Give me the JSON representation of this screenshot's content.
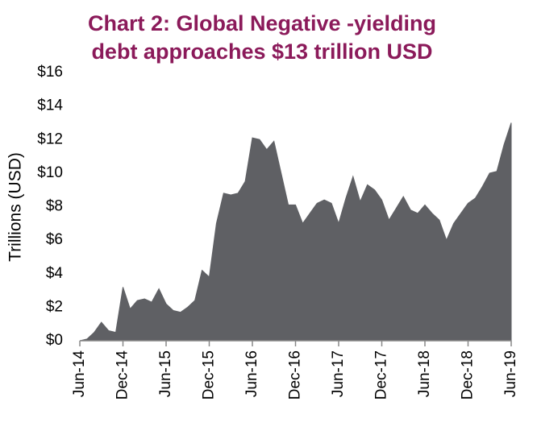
{
  "chart_data": {
    "type": "area",
    "title": [
      "Chart 2: Global Negative -yielding",
      "debt approaches $13 trillion USD"
    ],
    "y_label": "Trillions (USD)",
    "color": "#5f6064",
    "categories": [
      "Jun-14",
      null,
      null,
      null,
      null,
      null,
      "Dec-14",
      null,
      null,
      null,
      null,
      null,
      "Jun-15",
      null,
      null,
      null,
      null,
      null,
      "Dec-15",
      null,
      null,
      null,
      null,
      null,
      "Jun-16",
      null,
      null,
      null,
      null,
      null,
      "Dec-16",
      null,
      null,
      null,
      null,
      null,
      "Jun-17",
      null,
      null,
      null,
      null,
      null,
      "Dec-17",
      null,
      null,
      null,
      null,
      null,
      "Jun-18",
      null,
      null,
      null,
      null,
      null,
      "Dec-18",
      null,
      null,
      null,
      null,
      null,
      "Jun-19"
    ],
    "values": [
      0,
      0.1,
      0.5,
      1.1,
      0.6,
      0.5,
      3.2,
      1.9,
      2.4,
      2.5,
      2.3,
      3.1,
      2.2,
      1.8,
      1.7,
      2.0,
      2.4,
      4.2,
      3.8,
      7.0,
      8.8,
      8.7,
      8.8,
      9.5,
      12.1,
      12.0,
      11.4,
      11.9,
      10.0,
      8.1,
      8.1,
      7.0,
      7.6,
      8.2,
      8.4,
      8.2,
      7.0,
      8.5,
      9.8,
      8.3,
      9.3,
      9.0,
      8.4,
      7.2,
      7.9,
      8.6,
      7.8,
      7.6,
      8.1,
      7.6,
      7.2,
      6.0,
      7.0,
      7.6,
      8.2,
      8.5,
      9.2,
      10.0,
      10.1,
      11.7,
      13.0
    ],
    "ylim": [
      0,
      16
    ],
    "yticks": [
      {
        "value": 0,
        "label": "$0"
      },
      {
        "value": 2,
        "label": "$2"
      },
      {
        "value": 4,
        "label": "$4"
      },
      {
        "value": 6,
        "label": "$6"
      },
      {
        "value": 8,
        "label": "$8"
      },
      {
        "value": 10,
        "label": "$10"
      },
      {
        "value": 12,
        "label": "$12"
      },
      {
        "value": 14,
        "label": "$14"
      },
      {
        "value": 16,
        "label": "$16"
      }
    ],
    "grid": false
  }
}
